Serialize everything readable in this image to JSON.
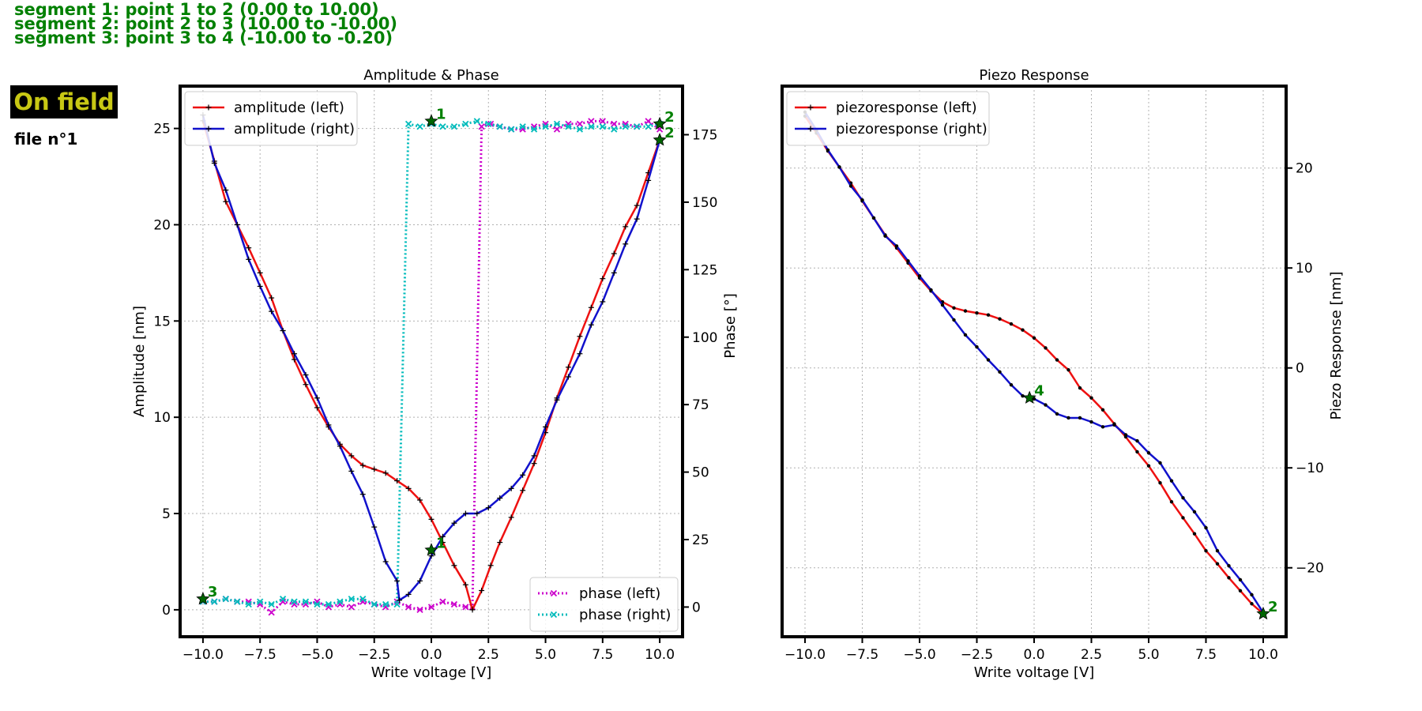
{
  "header": {
    "segments": [
      "segment 1: point 1 to 2 (0.00 to 10.00)",
      "segment 2: point 2 to 3 (10.00 to -10.00)",
      "segment 3: point 3 to 4 (-10.00 to -0.20)"
    ],
    "mode_badge": "On field",
    "file_label": "file n°1"
  },
  "colors": {
    "amplitude_left": "#ee1111",
    "amplitude_right": "#1111cc",
    "phase_left": "#cc00cc",
    "phase_right": "#00bbbb",
    "point_marker": "#006400",
    "point_label": "#008000",
    "segment_text": "#008000",
    "badge_bg": "#000000",
    "badge_text": "#c8c814"
  },
  "chart_data": [
    {
      "type": "line",
      "title": "Amplitude & Phase",
      "xlabel": "Write voltage [V]",
      "ylabel": "Amplitude [nm]",
      "y2label": "Phase [°]",
      "xlim": [
        -11,
        11
      ],
      "ylim": [
        -1.4,
        27.2
      ],
      "y2lim": [
        -11,
        193
      ],
      "xticks": [
        -10.0,
        -7.5,
        -5.0,
        -2.5,
        0.0,
        2.5,
        5.0,
        7.5,
        10.0
      ],
      "xtick_labels": [
        "−10.0",
        "−7.5",
        "−5.0",
        "−2.5",
        "0.0",
        "2.5",
        "5.0",
        "7.5",
        "10.0"
      ],
      "yticks": [
        0,
        5,
        10,
        15,
        20,
        25
      ],
      "y2ticks": [
        0,
        25,
        50,
        75,
        100,
        125,
        150,
        175
      ],
      "grid": true,
      "legends": [
        {
          "placement": "top-left",
          "entries": [
            "amplitude (left)",
            "amplitude (right)"
          ]
        },
        {
          "placement": "bottom-right",
          "entries": [
            "phase (left)",
            "phase (right)"
          ]
        }
      ],
      "series": [
        {
          "name": "amplitude (left)",
          "axis": "left",
          "x": [
            -10,
            -9.5,
            -9,
            -8.5,
            -8,
            -7.5,
            -7,
            -6.5,
            -6,
            -5.5,
            -5,
            -4.5,
            -4,
            -3.5,
            -3,
            -2.5,
            -2,
            -1.5,
            -1,
            -0.5,
            0,
            0.5,
            1,
            1.5,
            1.8,
            2.2,
            2.6,
            3,
            3.5,
            4,
            4.5,
            5,
            5.5,
            6,
            6.5,
            7,
            7.5,
            8,
            8.5,
            9,
            9.5,
            10
          ],
          "y": [
            25.4,
            23.3,
            21.2,
            20.0,
            18.8,
            17.5,
            16.2,
            14.5,
            13.0,
            11.7,
            10.5,
            9.5,
            8.6,
            8.0,
            7.5,
            7.3,
            7.1,
            6.7,
            6.3,
            5.7,
            4.7,
            3.5,
            2.3,
            1.3,
            0.0,
            1.0,
            2.3,
            3.5,
            4.8,
            6.2,
            7.6,
            9.2,
            11.0,
            12.6,
            14.2,
            15.7,
            17.2,
            18.5,
            19.9,
            21.0,
            22.7,
            24.4
          ]
        },
        {
          "name": "amplitude (right)",
          "axis": "left",
          "x": [
            -10,
            -9.5,
            -9,
            -8.5,
            -8,
            -7.5,
            -7,
            -6.5,
            -6,
            -5.5,
            -5,
            -4.5,
            -4,
            -3.5,
            -3,
            -2.5,
            -2,
            -1.5,
            -1.4,
            -1,
            -0.5,
            0,
            0.5,
            1,
            1.5,
            2,
            2.5,
            3,
            3.5,
            4,
            4.5,
            5,
            5.5,
            6,
            6.5,
            7,
            7.5,
            8,
            8.5,
            9,
            9.5,
            10
          ],
          "y": [
            25.7,
            23.2,
            21.8,
            20.0,
            18.2,
            16.8,
            15.5,
            14.5,
            13.3,
            12.2,
            11.0,
            9.6,
            8.5,
            7.2,
            6.0,
            4.3,
            2.5,
            1.5,
            0.5,
            0.8,
            1.5,
            2.8,
            3.8,
            4.5,
            5.0,
            5.0,
            5.3,
            5.8,
            6.3,
            7.0,
            8.0,
            9.5,
            10.9,
            12.1,
            13.3,
            14.8,
            16.0,
            17.5,
            19.0,
            20.3,
            22.3,
            24.4
          ]
        },
        {
          "name": "phase (left)",
          "axis": "right",
          "x": [
            -10,
            -9.5,
            -9,
            -8.5,
            -8,
            -7.5,
            -7,
            -6.5,
            -6,
            -5.5,
            -5,
            -4.5,
            -4,
            -3.5,
            -3,
            -2.5,
            -2,
            -1.5,
            -1,
            -0.5,
            0,
            0.5,
            1,
            1.5,
            1.8,
            2.2,
            2.6,
            3,
            3.5,
            4,
            4.5,
            5,
            5.5,
            6,
            6.5,
            7,
            7.5,
            8,
            8.5,
            9,
            9.5,
            10
          ],
          "y": [
            2,
            2,
            3,
            2,
            2,
            1,
            -2,
            2,
            1,
            1,
            2,
            0,
            1,
            0,
            2,
            1,
            0,
            2,
            0,
            -1,
            0,
            2,
            1,
            0,
            0,
            178,
            179,
            178,
            177,
            177,
            178,
            179,
            177,
            179,
            179,
            180,
            180,
            179,
            179,
            178,
            180,
            177
          ]
        },
        {
          "name": "phase (right)",
          "axis": "right",
          "x": [
            -10,
            -9.5,
            -9,
            -8.5,
            -8,
            -7.5,
            -7,
            -6.5,
            -6,
            -5.5,
            -5,
            -4.5,
            -4,
            -3.5,
            -3,
            -2.5,
            -2,
            -1.5,
            -1,
            -0.5,
            0,
            0.5,
            1,
            1.5,
            2,
            2.5,
            3,
            3.5,
            4,
            4.5,
            5,
            5.5,
            6,
            6.5,
            7,
            7.5,
            8,
            8.5,
            9,
            9.5,
            10
          ],
          "y": [
            2,
            2,
            3,
            2,
            1,
            2,
            1,
            3,
            2,
            2,
            1,
            1,
            2,
            3,
            3,
            1,
            1,
            1,
            179,
            178,
            179,
            178,
            178,
            179,
            180,
            179,
            178,
            177,
            178,
            177,
            178,
            179,
            178,
            177,
            178,
            178,
            177,
            178,
            178,
            178,
            179
          ]
        }
      ],
      "points": [
        {
          "label": "1",
          "x": 0.0,
          "y": 3.1,
          "axis": "left"
        },
        {
          "label": "1",
          "x": 0.0,
          "y": 180,
          "axis": "right"
        },
        {
          "label": "2",
          "x": 10.0,
          "y": 24.4,
          "axis": "left"
        },
        {
          "label": "2",
          "x": 10.0,
          "y": 179,
          "axis": "right"
        },
        {
          "label": "3",
          "x": -10.0,
          "y": 3,
          "axis": "right"
        }
      ]
    },
    {
      "type": "line",
      "title": "Piezo Response",
      "xlabel": "Write voltage [V]",
      "ylabel": "Piezo Response [nm]",
      "xlim": [
        -11,
        11
      ],
      "ylim": [
        -26.9,
        28.2
      ],
      "xticks": [
        -10.0,
        -7.5,
        -5.0,
        -2.5,
        0.0,
        2.5,
        5.0,
        7.5,
        10.0
      ],
      "xtick_labels": [
        "−10.0",
        "−7.5",
        "−5.0",
        "−2.5",
        "0.0",
        "2.5",
        "5.0",
        "7.5",
        "10.0"
      ],
      "yticks": [
        -20,
        -10,
        0,
        10,
        20
      ],
      "ytick_labels": [
        "−20",
        "−10",
        "0",
        "10",
        "20"
      ],
      "grid": true,
      "legends": [
        {
          "placement": "top-left",
          "entries": [
            "piezoresponse (left)",
            "piezoresponse (right)"
          ]
        }
      ],
      "series": [
        {
          "name": "piezoresponse (left)",
          "x": [
            -10,
            -9.5,
            -9,
            -8.5,
            -8,
            -7.5,
            -7,
            -6.5,
            -6,
            -5.5,
            -5,
            -4.5,
            -4,
            -3.5,
            -3,
            -2.5,
            -2,
            -1.5,
            -1,
            -0.5,
            0,
            0.5,
            1,
            1.5,
            2,
            2.5,
            3,
            3.5,
            4,
            4.5,
            5,
            5.5,
            6,
            6.5,
            7,
            7.5,
            8,
            8.5,
            9,
            9.5,
            10
          ],
          "y": [
            25.2,
            23.5,
            21.7,
            20.1,
            18.5,
            16.7,
            15.0,
            13.3,
            12.0,
            10.5,
            9.0,
            7.7,
            6.6,
            6.0,
            5.7,
            5.5,
            5.3,
            4.9,
            4.4,
            3.8,
            3.0,
            2.0,
            0.8,
            -0.2,
            -2.0,
            -3.0,
            -4.2,
            -5.6,
            -6.9,
            -8.4,
            -9.8,
            -11.5,
            -13.4,
            -15.0,
            -16.6,
            -18.3,
            -19.6,
            -21.0,
            -22.3,
            -23.6,
            -24.6
          ]
        },
        {
          "name": "piezoresponse (right)",
          "x": [
            -10,
            -9.5,
            -9,
            -8.5,
            -8,
            -7.5,
            -7,
            -6.5,
            -6,
            -5.5,
            -5,
            -4.5,
            -4,
            -3.5,
            -3,
            -2.5,
            -2,
            -1.5,
            -1,
            -0.5,
            0,
            0.5,
            1,
            1.5,
            2,
            2.5,
            3,
            3.5,
            4,
            4.5,
            5,
            5.5,
            6,
            6.5,
            7,
            7.5,
            8,
            8.5,
            9,
            9.5,
            10
          ],
          "y": [
            25.6,
            23.8,
            21.8,
            20.1,
            18.2,
            16.8,
            15.0,
            13.2,
            12.2,
            10.7,
            9.2,
            7.8,
            6.3,
            4.8,
            3.3,
            2.1,
            0.8,
            -0.4,
            -1.7,
            -2.8,
            -3.1,
            -3.7,
            -4.6,
            -5.0,
            -5.0,
            -5.4,
            -5.9,
            -5.7,
            -6.7,
            -7.3,
            -8.5,
            -9.5,
            -11.3,
            -13.0,
            -14.4,
            -16.0,
            -18.3,
            -19.8,
            -21.2,
            -22.7,
            -24.5
          ]
        }
      ],
      "points": [
        {
          "label": "2",
          "x": 10.0,
          "y": -24.6
        },
        {
          "label": "4",
          "x": -0.2,
          "y": -3.0
        }
      ]
    }
  ]
}
